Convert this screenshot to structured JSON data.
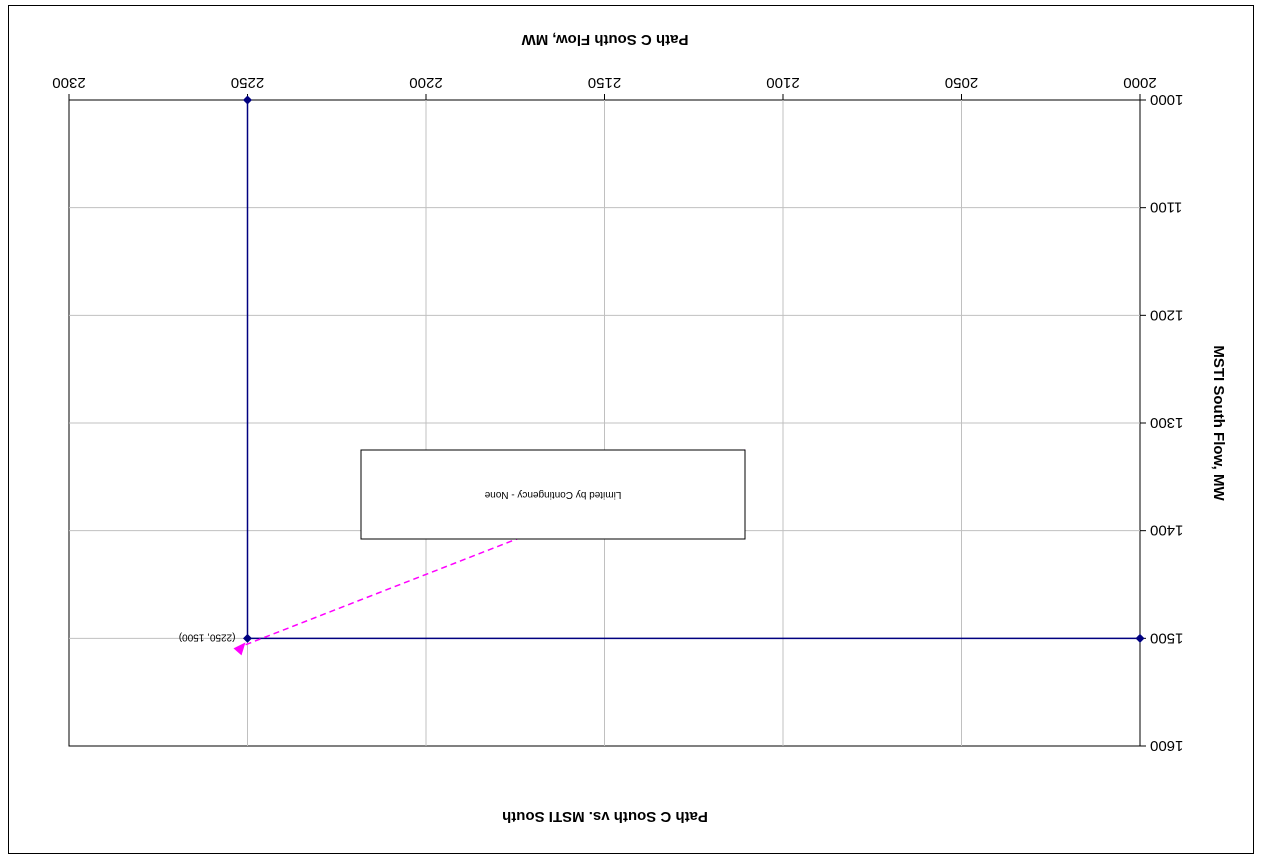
{
  "chart_data": {
    "type": "line",
    "title": "Path C South vs. MSTI South",
    "xlabel": "Path C South Flow, MW",
    "ylabel": "MSTI South Flow, MW",
    "xlim": [
      2000,
      2300
    ],
    "ylim": [
      1000,
      1600
    ],
    "x_ticks": [
      "2000",
      "2050",
      "2100",
      "2150",
      "2200",
      "2250",
      "2300"
    ],
    "y_ticks": [
      "1000",
      "1100",
      "1200",
      "1300",
      "1400",
      "1500",
      "1600"
    ],
    "grid": true,
    "orientation": "rotated-180",
    "series": [
      {
        "points": [
          {
            "x": 2000,
            "y": 1500
          },
          {
            "x": 2250,
            "y": 1500
          },
          {
            "x": 2250,
            "y": 1000
          }
        ],
        "color": "#000080",
        "marker_color": "#000080"
      }
    ],
    "point_label": {
      "text": "(2250, 1500)",
      "x": 2250,
      "y": 1500
    },
    "annotation": {
      "text": "Limited by Contingency - None",
      "arrow_color": "#ff00ff",
      "target": {
        "x": 2250,
        "y": 1500
      }
    }
  }
}
